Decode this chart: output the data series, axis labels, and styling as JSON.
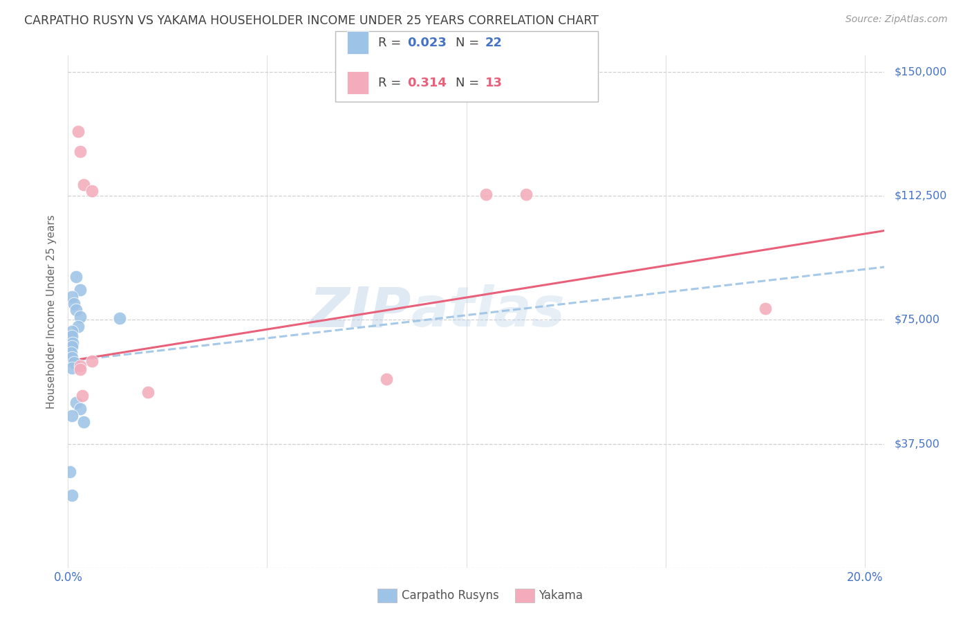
{
  "title": "CARPATHO RUSYN VS YAKAMA HOUSEHOLDER INCOME UNDER 25 YEARS CORRELATION CHART",
  "source": "Source: ZipAtlas.com",
  "ylabel": "Householder Income Under 25 years",
  "xlim": [
    0.0,
    0.205
  ],
  "ylim": [
    0,
    155000
  ],
  "ytick_vals": [
    0,
    37500,
    75000,
    112500,
    150000
  ],
  "ytick_labels": [
    "",
    "$37,500",
    "$75,000",
    "$112,500",
    "$150,000"
  ],
  "xtick_vals": [
    0.0,
    0.05,
    0.1,
    0.15,
    0.2
  ],
  "xtick_labels": [
    "0.0%",
    "",
    "",
    "",
    "20.0%"
  ],
  "watermark_zip": "ZIP",
  "watermark_atlas": "atlas",
  "carpatho_r": "0.023",
  "carpatho_n": "22",
  "yakama_r": "0.314",
  "yakama_n": "13",
  "carpatho_x": [
    0.002,
    0.003,
    0.001,
    0.0015,
    0.002,
    0.003,
    0.0025,
    0.001,
    0.001,
    0.0012,
    0.001,
    0.0008,
    0.001,
    0.0015,
    0.001,
    0.002,
    0.003,
    0.001,
    0.013,
    0.0005,
    0.004,
    0.001
  ],
  "carpatho_y": [
    88000,
    84000,
    82000,
    80000,
    78000,
    76000,
    73000,
    71500,
    70000,
    68000,
    67000,
    65000,
    63500,
    62000,
    60500,
    50000,
    48000,
    46000,
    75500,
    29000,
    44000,
    22000
  ],
  "yakama_x": [
    0.0025,
    0.003,
    0.004,
    0.006,
    0.105,
    0.115,
    0.006,
    0.08,
    0.02,
    0.175,
    0.003,
    0.003,
    0.0035
  ],
  "yakama_y": [
    132000,
    126000,
    116000,
    114000,
    113000,
    113000,
    62500,
    57000,
    53000,
    78500,
    61000,
    60000,
    52000
  ],
  "blue_line": {
    "x0": 0.0,
    "x1": 0.205,
    "y0": 62500,
    "y1": 91000
  },
  "pink_line": {
    "x0": 0.0,
    "x1": 0.205,
    "y0": 62500,
    "y1": 102000
  },
  "dot_color_blue": "#9dc3e6",
  "dot_color_pink": "#f4acbc",
  "line_color_blue": "#9dc3e6",
  "line_color_pink": "#e8607a",
  "axis_label_color": "#4472c4",
  "title_color": "#404040",
  "grid_color": "#d0d0d0",
  "background_color": "#ffffff"
}
